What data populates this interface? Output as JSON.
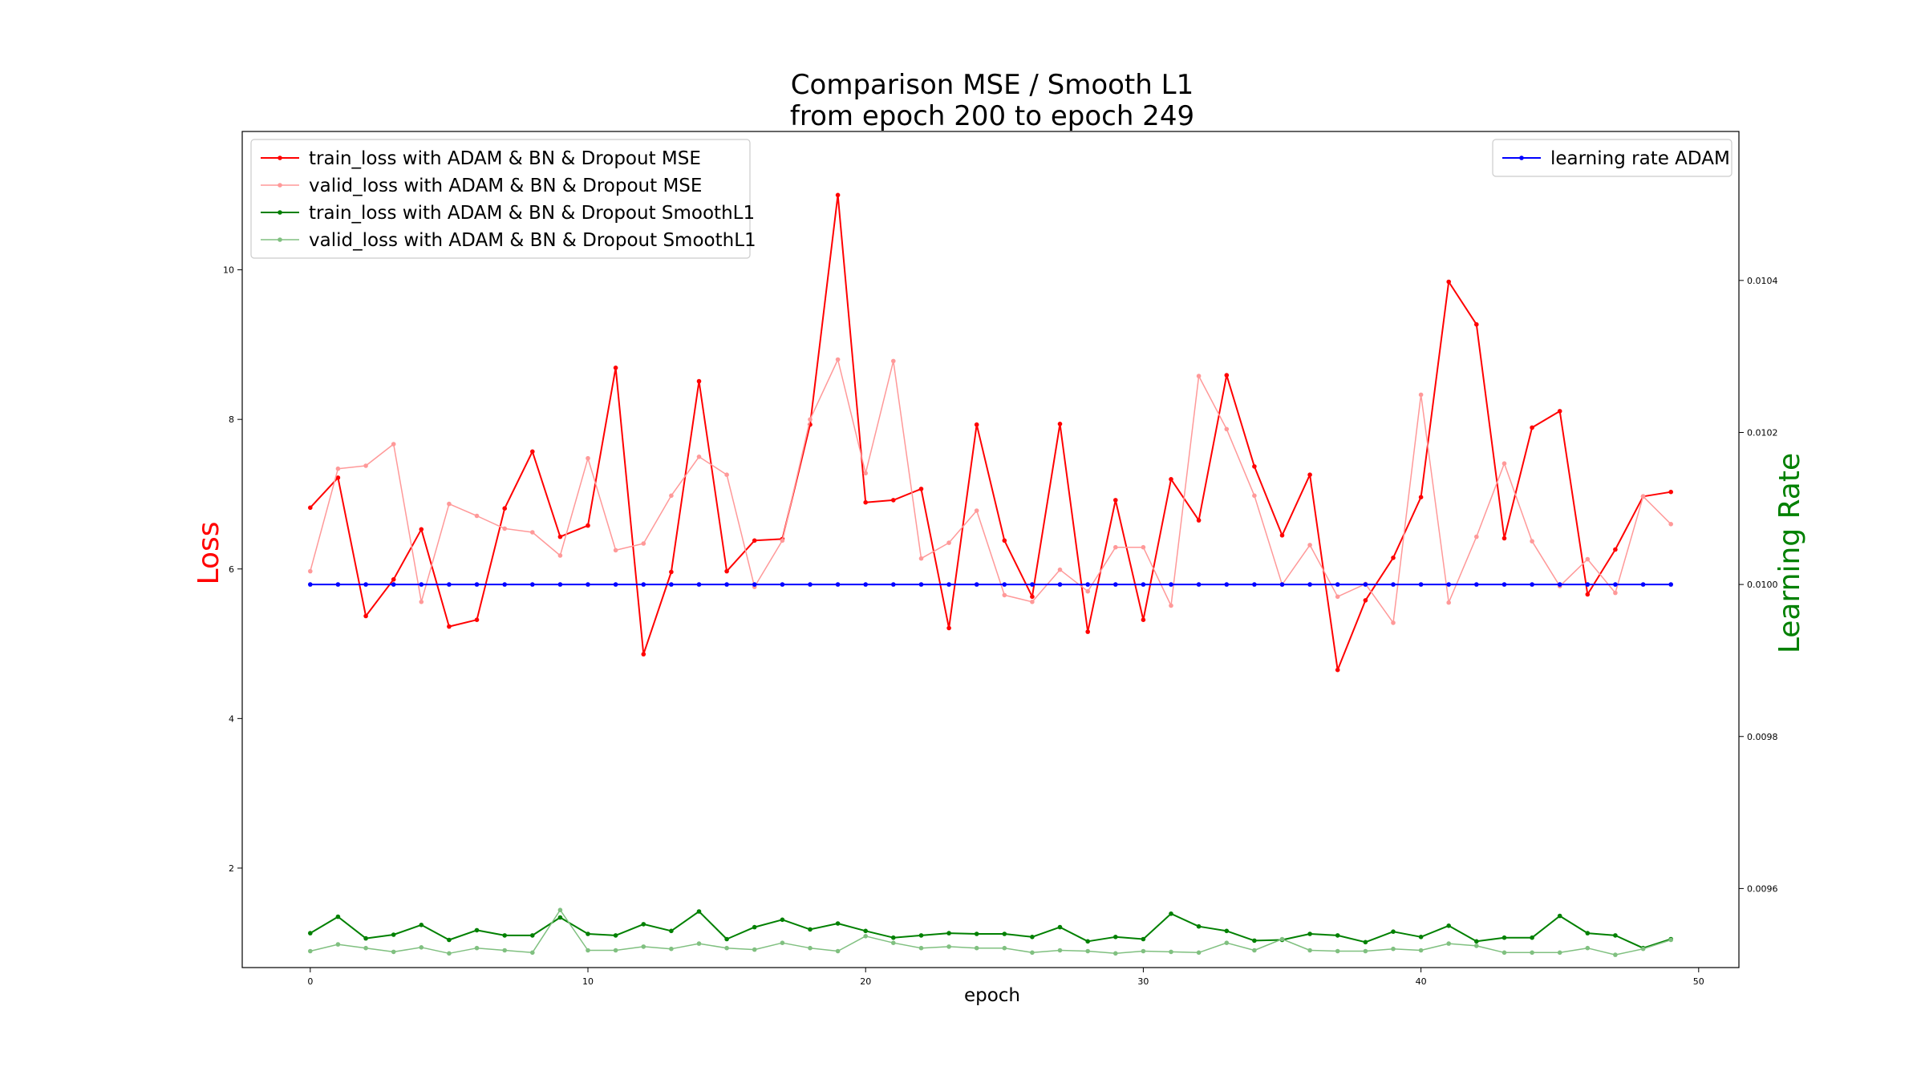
{
  "chart_data": {
    "type": "line",
    "title": "Comparison MSE / Smooth L1",
    "subtitle": "from epoch 200 to epoch 249",
    "xlabel": "epoch",
    "ylabel": "Loss",
    "y2label": "Learning Rate",
    "xlim": [
      -2.45,
      51.45
    ],
    "ylim": [
      0.67,
      11.85
    ],
    "y2lim": [
      0.009496,
      0.010596
    ],
    "x_ticks": [
      0,
      10,
      20,
      30,
      40,
      50
    ],
    "y_ticks": [
      2,
      4,
      6,
      8,
      10
    ],
    "y2_ticks": [
      0.0096,
      0.0098,
      0.01,
      0.0102,
      0.0104
    ],
    "y2_tick_labels": [
      "0.0096",
      "0.0098",
      "0.0100",
      "0.0102",
      "0.0104"
    ],
    "legend_left": "top-left",
    "legend_right": "top-right",
    "colors": {
      "train_mse": "#ff0000",
      "valid_mse": "#ff9999",
      "train_smooth": "#008000",
      "valid_smooth": "#80c080",
      "lr": "#0000ff",
      "ylabel": "#ff0000",
      "y2label": "#008000"
    },
    "x": [
      0,
      1,
      2,
      3,
      4,
      5,
      6,
      7,
      8,
      9,
      10,
      11,
      12,
      13,
      14,
      15,
      16,
      17,
      18,
      19,
      20,
      21,
      22,
      23,
      24,
      25,
      26,
      27,
      28,
      29,
      30,
      31,
      32,
      33,
      34,
      35,
      36,
      37,
      38,
      39,
      40,
      41,
      42,
      43,
      44,
      45,
      46,
      47,
      48,
      49
    ],
    "series": [
      {
        "name": "train_loss with ADAM & BN & Dropout MSE",
        "key": "train_mse",
        "axis": "left",
        "alpha": 1.0,
        "width": 2,
        "values": [
          6.82,
          7.22,
          5.37,
          5.86,
          6.53,
          5.23,
          5.32,
          6.81,
          7.57,
          6.43,
          6.58,
          8.69,
          4.86,
          5.96,
          8.51,
          5.97,
          6.38,
          6.4,
          7.93,
          11.0,
          6.89,
          6.92,
          7.07,
          5.21,
          7.93,
          6.38,
          5.63,
          7.94,
          5.16,
          6.92,
          5.32,
          7.2,
          6.65,
          8.59,
          7.37,
          6.45,
          7.26,
          4.65,
          5.58,
          6.15,
          6.96,
          9.84,
          9.27,
          6.41,
          7.89,
          8.11,
          5.66,
          6.26,
          6.97,
          7.03
        ]
      },
      {
        "name": "valid_loss with ADAM & BN & Dropout MSE",
        "key": "valid_mse",
        "axis": "left",
        "alpha": 1.0,
        "width": 1.5,
        "values": [
          5.97,
          7.34,
          7.38,
          7.67,
          5.56,
          6.87,
          6.71,
          6.54,
          6.49,
          6.18,
          7.48,
          6.25,
          6.34,
          6.98,
          7.5,
          7.26,
          5.76,
          6.38,
          8.0,
          8.8,
          7.28,
          8.78,
          6.14,
          6.35,
          6.78,
          5.65,
          5.56,
          5.99,
          5.7,
          6.29,
          6.29,
          5.51,
          8.58,
          7.87,
          6.98,
          5.79,
          6.32,
          5.63,
          5.8,
          5.28,
          8.33,
          5.55,
          6.43,
          7.41,
          6.37,
          5.77,
          6.13,
          5.68,
          6.97,
          6.6
        ]
      },
      {
        "name": "train_loss with ADAM & BN & Dropout SmoothL1",
        "key": "train_smooth",
        "axis": "left",
        "alpha": 1.0,
        "width": 2,
        "values": [
          1.13,
          1.35,
          1.06,
          1.11,
          1.24,
          1.04,
          1.17,
          1.1,
          1.1,
          1.34,
          1.12,
          1.1,
          1.25,
          1.16,
          1.42,
          1.05,
          1.21,
          1.31,
          1.18,
          1.26,
          1.16,
          1.07,
          1.1,
          1.13,
          1.12,
          1.12,
          1.08,
          1.21,
          1.02,
          1.08,
          1.05,
          1.39,
          1.22,
          1.16,
          1.03,
          1.04,
          1.12,
          1.1,
          1.01,
          1.15,
          1.08,
          1.23,
          1.02,
          1.07,
          1.07,
          1.36,
          1.13,
          1.1,
          0.93,
          1.05
        ]
      },
      {
        "name": "valid_loss with ADAM & BN & Dropout SmoothL1",
        "key": "valid_smooth",
        "axis": "left",
        "alpha": 1.0,
        "width": 1.5,
        "values": [
          0.89,
          0.98,
          0.93,
          0.88,
          0.94,
          0.86,
          0.93,
          0.9,
          0.87,
          1.44,
          0.9,
          0.9,
          0.95,
          0.92,
          0.99,
          0.93,
          0.91,
          1.0,
          0.93,
          0.89,
          1.09,
          1.0,
          0.93,
          0.95,
          0.93,
          0.93,
          0.87,
          0.9,
          0.89,
          0.86,
          0.89,
          0.88,
          0.87,
          1.0,
          0.9,
          1.05,
          0.9,
          0.89,
          0.89,
          0.92,
          0.9,
          0.99,
          0.96,
          0.87,
          0.87,
          0.87,
          0.93,
          0.84,
          0.92,
          1.04
        ]
      },
      {
        "name": "learning rate ADAM",
        "key": "lr",
        "axis": "right",
        "alpha": 1.0,
        "width": 2,
        "values": [
          0.01,
          0.01,
          0.01,
          0.01,
          0.01,
          0.01,
          0.01,
          0.01,
          0.01,
          0.01,
          0.01,
          0.01,
          0.01,
          0.01,
          0.01,
          0.01,
          0.01,
          0.01,
          0.01,
          0.01,
          0.01,
          0.01,
          0.01,
          0.01,
          0.01,
          0.01,
          0.01,
          0.01,
          0.01,
          0.01,
          0.01,
          0.01,
          0.01,
          0.01,
          0.01,
          0.01,
          0.01,
          0.01,
          0.01,
          0.01,
          0.01,
          0.01,
          0.01,
          0.01,
          0.01,
          0.01,
          0.01,
          0.01,
          0.01,
          0.01
        ]
      }
    ]
  }
}
